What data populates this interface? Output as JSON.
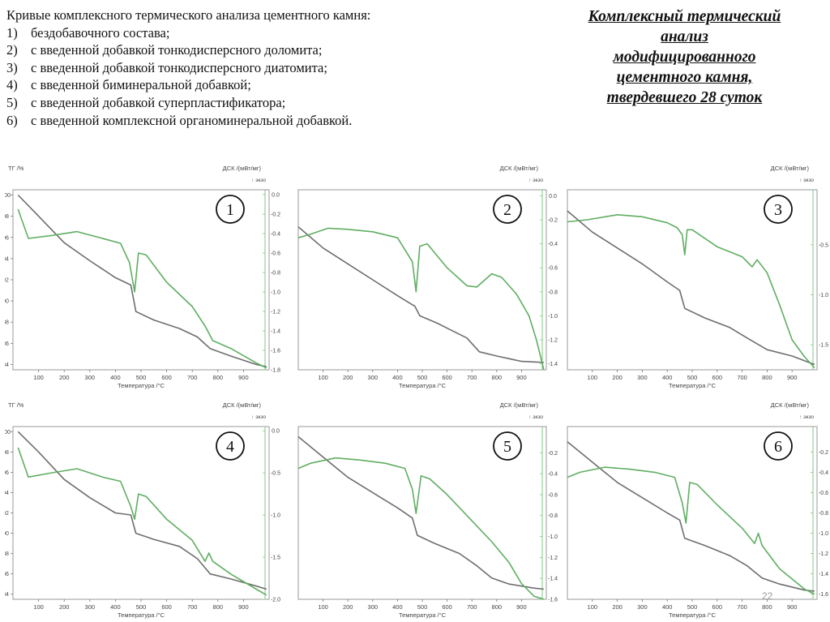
{
  "intro": {
    "heading": "Кривые комплексного термического анализа цементного камня:",
    "items": [
      {
        "num": "1)",
        "text": "бездобавочного состава;"
      },
      {
        "num": "2)",
        "text": "с введенной добавкой тонкодисперсного доломита;"
      },
      {
        "num": "3)",
        "text": "с введенной добавкой тонкодисперсного диатомита;"
      },
      {
        "num": "4)",
        "text": "с введенной биминеральной добавкой;"
      },
      {
        "num": "5)",
        "text": "с введенной добавкой суперпластификатора;"
      },
      {
        "num": "6)",
        "text": "с введенной комплексной органоминеральной добавкой."
      }
    ]
  },
  "side_title": {
    "lines": [
      "Комплексный термический",
      "анализ",
      "модифицированного",
      "цементного камня,",
      "твердевшего 28 суток"
    ]
  },
  "page_number": "22",
  "colors": {
    "tg": "#6e6e6e",
    "dsc": "#5fae62",
    "grid": "#d9d9d9",
    "axis_dsc": "#7cc87f"
  },
  "chart_data": [
    {
      "type": "line",
      "label": "1",
      "xlabel": "Температура /°C",
      "y1label": "ТГ /%",
      "y2label": "ДСК /(мВт/мг)",
      "exo_label": "↑ экзо",
      "x_ticks": [
        "100",
        "200",
        "300",
        "400",
        "500",
        "600",
        "700",
        "800",
        "900"
      ],
      "xlim": [
        0,
        1000
      ],
      "y1_ticks": [
        "84",
        "86",
        "88",
        "90",
        "92",
        "94",
        "96",
        "98",
        "100"
      ],
      "y1lim": [
        83.5,
        100.5
      ],
      "y2_ticks": [
        "0.0",
        "-0.2",
        "-0.4",
        "-0.6",
        "-0.8",
        "-1.0",
        "-1.2",
        "-1.4",
        "-1.6",
        "-1.8"
      ],
      "y2lim": [
        -1.8,
        0.05
      ],
      "grid": false,
      "series": [
        {
          "curve": "tg",
          "x": [
            20,
            100,
            200,
            300,
            400,
            460,
            480,
            550,
            650,
            720,
            770,
            850,
            950,
            990
          ],
          "y": [
            100,
            98,
            95.5,
            93.8,
            92.2,
            91.5,
            89,
            88.2,
            87.4,
            86.6,
            85.5,
            84.8,
            84,
            83.8
          ]
        },
        {
          "curve": "dsc",
          "x": [
            20,
            60,
            150,
            250,
            350,
            420,
            455,
            475,
            490,
            520,
            600,
            700,
            750,
            780,
            850,
            950,
            990
          ],
          "y": [
            -0.15,
            -0.45,
            -0.42,
            -0.38,
            -0.45,
            -0.5,
            -0.7,
            -1.0,
            -0.6,
            -0.62,
            -0.9,
            -1.15,
            -1.35,
            -1.5,
            -1.58,
            -1.73,
            -1.78
          ]
        }
      ]
    },
    {
      "type": "line",
      "label": "2",
      "xlabel": "Температура /°C",
      "y1label": "",
      "y2label": "ДСК /(мВт/мг)",
      "exo_label": "↑ экзо",
      "x_ticks": [
        "100",
        "200",
        "300",
        "400",
        "500",
        "600",
        "700",
        "800",
        "900"
      ],
      "xlim": [
        0,
        1000
      ],
      "y1_ticks": [],
      "y1lim": [
        83.5,
        100.5
      ],
      "y2_ticks": [
        "0.0",
        "-0.2",
        "-0.4",
        "-0.6",
        "-0.8",
        "-1.0",
        "-1.2",
        "-1.4"
      ],
      "y2lim": [
        -1.45,
        0.05
      ],
      "grid": false,
      "series": [
        {
          "curve": "tg",
          "x": [
            0,
            100,
            200,
            300,
            400,
            470,
            490,
            560,
            620,
            680,
            730,
            800,
            900,
            990
          ],
          "y": [
            97,
            95,
            93.5,
            92,
            90.5,
            89.5,
            88.6,
            87.9,
            87.2,
            86.5,
            85.2,
            84.8,
            84.3,
            84.2
          ]
        },
        {
          "curve": "dsc",
          "x": [
            0,
            50,
            120,
            200,
            300,
            400,
            460,
            475,
            490,
            520,
            600,
            680,
            720,
            780,
            820,
            880,
            930,
            960,
            990
          ],
          "y": [
            -0.35,
            -0.32,
            -0.27,
            -0.28,
            -0.3,
            -0.35,
            -0.55,
            -0.8,
            -0.42,
            -0.4,
            -0.6,
            -0.75,
            -0.76,
            -0.65,
            -0.68,
            -0.82,
            -1.0,
            -1.2,
            -1.45
          ]
        }
      ]
    },
    {
      "type": "line",
      "label": "3",
      "xlabel": "Температура /°C",
      "y1label": "",
      "y2label": "ДСК /(мВт/мг)",
      "exo_label": "↑ экзо",
      "x_ticks": [
        "100",
        "200",
        "300",
        "400",
        "500",
        "600",
        "700",
        "800",
        "900"
      ],
      "xlim": [
        0,
        1000
      ],
      "y1_ticks": [],
      "y1lim": [
        83.5,
        100.5
      ],
      "y2_ticks": [
        "-0.5",
        "-1.0",
        "-1.5"
      ],
      "y2lim": [
        -1.75,
        0.05
      ],
      "grid": false,
      "series": [
        {
          "curve": "tg",
          "x": [
            0,
            100,
            200,
            300,
            400,
            450,
            470,
            550,
            650,
            720,
            800,
            900,
            990
          ],
          "y": [
            98.5,
            96.5,
            95,
            93.5,
            91.8,
            91,
            89.3,
            88.4,
            87.5,
            86.5,
            85.4,
            84.8,
            84
          ]
        },
        {
          "curve": "dsc",
          "x": [
            0,
            80,
            200,
            300,
            400,
            440,
            460,
            470,
            480,
            500,
            600,
            700,
            740,
            760,
            800,
            850,
            900,
            950,
            990
          ],
          "y": [
            -0.27,
            -0.25,
            -0.2,
            -0.22,
            -0.28,
            -0.33,
            -0.4,
            -0.6,
            -0.35,
            -0.35,
            -0.52,
            -0.62,
            -0.72,
            -0.65,
            -0.78,
            -1.1,
            -1.45,
            -1.62,
            -1.73
          ]
        }
      ]
    },
    {
      "type": "line",
      "label": "4",
      "xlabel": "Температура /°C",
      "y1label": "ТГ /%",
      "y2label": "ДСК /(мВт/мг)",
      "exo_label": "↑ экзо",
      "x_ticks": [
        "100",
        "200",
        "300",
        "400",
        "500",
        "600",
        "700",
        "800",
        "900"
      ],
      "xlim": [
        0,
        1000
      ],
      "y1_ticks": [
        "84",
        "86",
        "88",
        "90",
        "92",
        "94",
        "96",
        "98",
        "100"
      ],
      "y1lim": [
        83.5,
        100.5
      ],
      "y2_ticks": [
        "0.0",
        "-0.5",
        "-1.0",
        "-1.5",
        "-2.0"
      ],
      "y2lim": [
        -2.0,
        0.05
      ],
      "grid": false,
      "series": [
        {
          "curve": "tg",
          "x": [
            20,
            100,
            200,
            300,
            400,
            460,
            480,
            550,
            650,
            720,
            770,
            850,
            950,
            990
          ],
          "y": [
            100,
            98,
            95.3,
            93.5,
            92,
            91.8,
            90,
            89.4,
            88.7,
            87.5,
            86,
            85.5,
            84.8,
            84.5
          ]
        },
        {
          "curve": "dsc",
          "x": [
            20,
            60,
            150,
            250,
            350,
            420,
            460,
            475,
            490,
            520,
            600,
            700,
            750,
            765,
            780,
            850,
            950,
            990
          ],
          "y": [
            -0.2,
            -0.55,
            -0.5,
            -0.45,
            -0.55,
            -0.6,
            -0.9,
            -1.05,
            -0.75,
            -0.78,
            -1.05,
            -1.3,
            -1.55,
            -1.45,
            -1.55,
            -1.7,
            -1.88,
            -1.95
          ]
        }
      ]
    },
    {
      "type": "line",
      "label": "5",
      "xlabel": "Температура /°C",
      "y1label": "",
      "y2label": "ДСК /(мВт/мг)",
      "exo_label": "↑ экзо",
      "x_ticks": [
        "100",
        "200",
        "300",
        "400",
        "500",
        "600",
        "700",
        "800",
        "900"
      ],
      "xlim": [
        0,
        1000
      ],
      "y1_ticks": [],
      "y1lim": [
        83.5,
        100.5
      ],
      "y2_ticks": [
        "-0.2",
        "-0.4",
        "-0.6",
        "-0.8",
        "-1.0",
        "-1.2",
        "-1.4",
        "-1.6"
      ],
      "y2lim": [
        -1.6,
        0.05
      ],
      "grid": false,
      "series": [
        {
          "curve": "tg",
          "x": [
            0,
            100,
            200,
            300,
            400,
            460,
            480,
            550,
            650,
            720,
            780,
            850,
            950,
            990
          ],
          "y": [
            99.5,
            97.5,
            95.5,
            94,
            92.5,
            91.5,
            89.8,
            89,
            88,
            86.8,
            85.6,
            85,
            84.6,
            84.5
          ]
        },
        {
          "curve": "dsc",
          "x": [
            0,
            50,
            150,
            250,
            350,
            430,
            460,
            475,
            495,
            530,
            600,
            700,
            780,
            850,
            900,
            950,
            990
          ],
          "y": [
            -0.35,
            -0.3,
            -0.25,
            -0.27,
            -0.3,
            -0.35,
            -0.55,
            -0.78,
            -0.42,
            -0.45,
            -0.6,
            -0.85,
            -1.05,
            -1.25,
            -1.45,
            -1.57,
            -1.6
          ]
        }
      ]
    },
    {
      "type": "line",
      "label": "6",
      "xlabel": "Температура /°C",
      "y1label": "",
      "y2label": "ДСК /(мВт/мг)",
      "exo_label": "↑ экзо",
      "x_ticks": [
        "100",
        "200",
        "300",
        "400",
        "500",
        "600",
        "700",
        "800",
        "900"
      ],
      "xlim": [
        0,
        1000
      ],
      "y1_ticks": [],
      "y1lim": [
        83.5,
        100.5
      ],
      "y2_ticks": [
        "-0.2",
        "-0.4",
        "-0.6",
        "-0.8",
        "-1.0",
        "-1.2",
        "-1.4",
        "-1.6"
      ],
      "y2lim": [
        -1.65,
        0.05
      ],
      "grid": false,
      "series": [
        {
          "curve": "tg",
          "x": [
            0,
            100,
            200,
            300,
            400,
            450,
            470,
            550,
            650,
            720,
            780,
            850,
            950,
            990
          ],
          "y": [
            99,
            97,
            95,
            93.5,
            92,
            91.3,
            89.5,
            88.8,
            87.8,
            86.8,
            85.6,
            85,
            84.4,
            84.3
          ]
        },
        {
          "curve": "dsc",
          "x": [
            0,
            50,
            150,
            250,
            350,
            430,
            460,
            475,
            490,
            520,
            600,
            700,
            750,
            765,
            780,
            850,
            950,
            990
          ],
          "y": [
            -0.45,
            -0.4,
            -0.35,
            -0.37,
            -0.4,
            -0.45,
            -0.7,
            -0.9,
            -0.5,
            -0.52,
            -0.72,
            -0.95,
            -1.1,
            -1.0,
            -1.12,
            -1.35,
            -1.55,
            -1.6
          ]
        }
      ]
    }
  ]
}
